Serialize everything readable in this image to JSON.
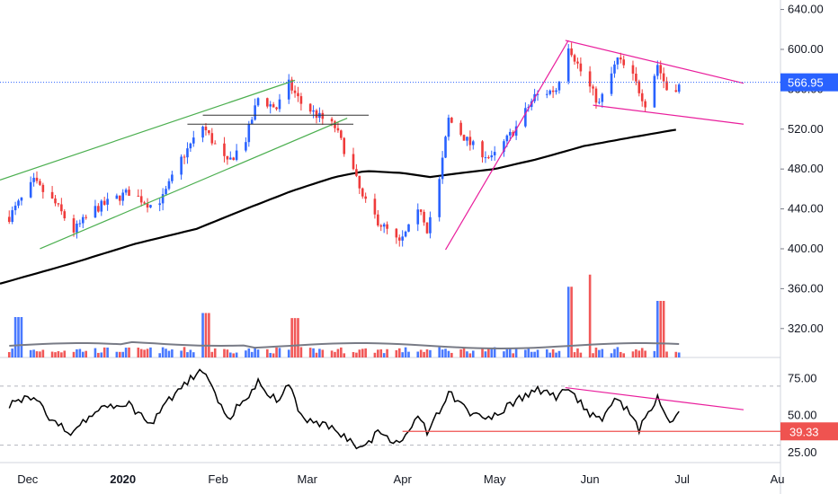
{
  "colors": {
    "up": "#2962ff",
    "down": "#ef3b3b",
    "ma": "#000000",
    "channel": "#4caf50",
    "trend": "#e91e9c",
    "rsi": "#000000",
    "rsi_level": "#ef5350",
    "grid": "#b2b5be",
    "last_price": "#2962ff",
    "vol_ma": "#787b86"
  },
  "chart_data": {
    "type": "candlestick",
    "title": "",
    "x_ticks": [
      {
        "label": "Dec",
        "date": "2019-12-01"
      },
      {
        "label": "2020",
        "date": "2020-01-01"
      },
      {
        "label": "Feb",
        "date": "2020-02-01"
      },
      {
        "label": "Mar",
        "date": "2020-03-01"
      },
      {
        "label": "Apr",
        "date": "2020-04-01"
      },
      {
        "label": "May",
        "date": "2020-05-01"
      },
      {
        "label": "Jun",
        "date": "2020-06-01"
      },
      {
        "label": "Jul",
        "date": "2020-07-01"
      },
      {
        "label": "Au",
        "date": "2020-08-01"
      }
    ],
    "price_axis": {
      "ticks": [
        "640.00",
        "600.00",
        "560.00",
        "520.00",
        "480.00",
        "440.00",
        "400.00",
        "360.00",
        "320.00"
      ],
      "range": [
        300,
        645
      ]
    },
    "last_price": {
      "label": "566.95",
      "value": 566.95
    },
    "rsi_axis": {
      "ticks": [
        "75.00",
        "50.00",
        "25.00"
      ],
      "range": [
        20,
        87
      ],
      "levels": [
        70,
        30
      ]
    },
    "rsi_last": {
      "label": "39.33",
      "value": 39.33
    },
    "price_path": [
      [
        "2019-11-25",
        432
      ],
      [
        "2019-12-03",
        467
      ],
      [
        "2019-12-10",
        445
      ],
      [
        "2019-12-16",
        418
      ],
      [
        "2019-12-23",
        440
      ],
      [
        "2020-01-03",
        457
      ],
      [
        "2020-01-10",
        444
      ],
      [
        "2020-01-14",
        451
      ],
      [
        "2020-01-20",
        490
      ],
      [
        "2020-01-27",
        523
      ],
      [
        "2020-02-04",
        485
      ],
      [
        "2020-02-10",
        510
      ],
      [
        "2020-02-14",
        551
      ],
      [
        "2020-02-20",
        541
      ],
      [
        "2020-02-24",
        565
      ],
      [
        "2020-02-28",
        546
      ],
      [
        "2020-03-05",
        532
      ],
      [
        "2020-03-10",
        522
      ],
      [
        "2020-03-16",
        478
      ],
      [
        "2020-03-19",
        450
      ],
      [
        "2020-03-24",
        428
      ],
      [
        "2020-03-31",
        405
      ],
      [
        "2020-04-07",
        440
      ],
      [
        "2020-04-09",
        420
      ],
      [
        "2020-04-13",
        468
      ],
      [
        "2020-04-16",
        530
      ],
      [
        "2020-04-23",
        505
      ],
      [
        "2020-04-30",
        490
      ],
      [
        "2020-05-08",
        522
      ],
      [
        "2020-05-14",
        553
      ],
      [
        "2020-05-21",
        560
      ],
      [
        "2020-05-25",
        605
      ],
      [
        "2020-05-29",
        578
      ],
      [
        "2020-06-04",
        545
      ],
      [
        "2020-06-10",
        590
      ],
      [
        "2020-06-15",
        572
      ],
      [
        "2020-06-19",
        546
      ],
      [
        "2020-06-23",
        585
      ],
      [
        "2020-06-26",
        560
      ],
      [
        "2020-06-30",
        563
      ]
    ],
    "sma": [
      [
        "2019-11-22",
        365
      ],
      [
        "2019-12-15",
        385
      ],
      [
        "2020-01-05",
        405
      ],
      [
        "2020-01-25",
        420
      ],
      [
        "2020-02-10",
        440
      ],
      [
        "2020-02-25",
        458
      ],
      [
        "2020-03-10",
        472
      ],
      [
        "2020-03-20",
        478
      ],
      [
        "2020-04-01",
        476
      ],
      [
        "2020-04-10",
        472
      ],
      [
        "2020-04-20",
        476
      ],
      [
        "2020-05-01",
        480
      ],
      [
        "2020-05-15",
        490
      ],
      [
        "2020-05-30",
        503
      ],
      [
        "2020-06-15",
        512
      ],
      [
        "2020-06-30",
        520
      ]
    ],
    "green_channel": [
      [
        [
          "2019-11-22",
          469
        ],
        [
          "2020-02-26",
          569
        ]
      ],
      [
        [
          "2019-12-05",
          400
        ],
        [
          "2020-03-14",
          531
        ]
      ]
    ],
    "horizontal_levels": [
      {
        "from": "2020-01-27",
        "to": "2020-03-21",
        "value": 534
      },
      {
        "from": "2020-01-22",
        "to": "2020-03-16",
        "value": 525
      }
    ],
    "magenta_trend": [
      [
        [
          "2020-04-15",
          399
        ],
        [
          "2020-05-25",
          609
        ]
      ],
      [
        [
          "2020-05-24",
          609
        ],
        [
          "2020-07-21",
          566
        ]
      ],
      [
        [
          "2020-06-02",
          544
        ],
        [
          "2020-07-21",
          525
        ]
      ]
    ],
    "volume": {
      "range": [
        0,
        800
      ],
      "base": 80,
      "spikes": [
        [
          "2020-05-25",
          700
        ],
        [
          "2020-05-31",
          820
        ],
        [
          "2020-06-24",
          560
        ],
        [
          "2020-02-26",
          390
        ],
        [
          "2020-01-28",
          440
        ],
        [
          "2019-11-28",
          400
        ]
      ]
    },
    "rsi_path": [
      [
        "2019-11-25",
        58
      ],
      [
        "2019-12-03",
        62
      ],
      [
        "2019-12-10",
        45
      ],
      [
        "2019-12-16",
        37
      ],
      [
        "2019-12-23",
        55
      ],
      [
        "2020-01-03",
        57
      ],
      [
        "2020-01-10",
        45
      ],
      [
        "2020-01-20",
        70
      ],
      [
        "2020-01-27",
        82
      ],
      [
        "2020-02-04",
        47
      ],
      [
        "2020-02-14",
        73
      ],
      [
        "2020-02-20",
        60
      ],
      [
        "2020-02-24",
        71
      ],
      [
        "2020-02-28",
        50
      ],
      [
        "2020-03-10",
        40
      ],
      [
        "2020-03-19",
        28
      ],
      [
        "2020-03-24",
        38
      ],
      [
        "2020-03-31",
        30
      ],
      [
        "2020-04-02",
        36
      ],
      [
        "2020-04-06",
        52
      ],
      [
        "2020-04-09",
        40
      ],
      [
        "2020-04-16",
        65
      ],
      [
        "2020-04-23",
        52
      ],
      [
        "2020-04-30",
        48
      ],
      [
        "2020-05-08",
        60
      ],
      [
        "2020-05-14",
        68
      ],
      [
        "2020-05-21",
        62
      ],
      [
        "2020-05-25",
        69
      ],
      [
        "2020-06-01",
        52
      ],
      [
        "2020-06-05",
        49
      ],
      [
        "2020-06-10",
        63
      ],
      [
        "2020-06-17",
        40
      ],
      [
        "2020-06-23",
        61
      ],
      [
        "2020-06-27",
        43
      ],
      [
        "2020-06-30",
        50
      ]
    ],
    "rsi_trend": [
      [
        "2020-05-24",
        69
      ],
      [
        "2020-07-21",
        54
      ]
    ],
    "rsi_support": [
      [
        "2020-04-01",
        39.33
      ],
      [
        "2020-07-21",
        39.33
      ]
    ]
  }
}
